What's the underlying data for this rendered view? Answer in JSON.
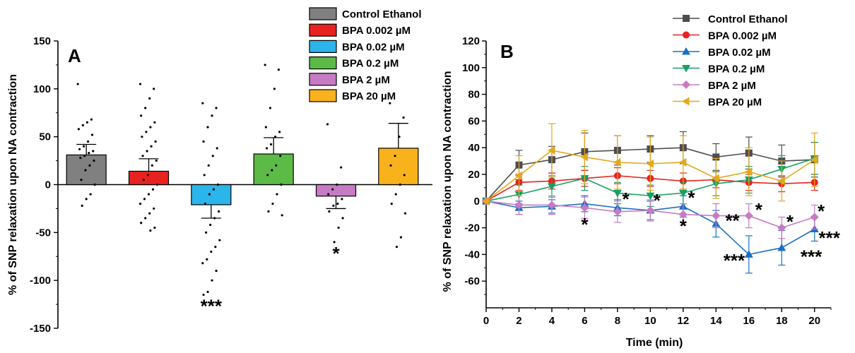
{
  "chart_data": [
    {
      "type": "bar",
      "panel_label": "A",
      "title": "",
      "xlabel": "",
      "ylabel": "% of SNP relaxation upon NA contraction",
      "ylim": [
        -150,
        150
      ],
      "yticks": [
        -150,
        -100,
        -50,
        0,
        50,
        100,
        150
      ],
      "categories": [
        "Control Ethanol",
        "BPA 0.002 µM",
        "BPA 0.02 µM",
        "BPA 0.2 µM",
        "BPA 2 µM",
        "BPA 20 µM"
      ],
      "values": [
        31,
        14,
        -21,
        32,
        -12,
        38
      ],
      "errors": [
        11,
        13,
        14,
        17,
        13,
        26
      ],
      "colors": [
        "#808080",
        "#e8221f",
        "#2bb5ea",
        "#5cba47",
        "#c77bc4",
        "#f9b21c"
      ],
      "significance": [
        "",
        "",
        "***",
        "",
        "*",
        ""
      ],
      "legend": [
        "Control Ethanol",
        "BPA 0.002 µM",
        "BPA 0.02 µM",
        "BPA 0.2 µM",
        "BPA 2 µM",
        "BPA 20 µM"
      ],
      "points": [
        [
          105,
          68,
          65,
          62,
          58,
          52,
          45,
          40,
          37,
          35,
          33,
          30,
          28,
          25,
          20,
          15,
          5,
          0,
          -10,
          -15,
          -22
        ],
        [
          105,
          100,
          90,
          80,
          72,
          65,
          60,
          55,
          50,
          45,
          40,
          35,
          30,
          25,
          20,
          10,
          5,
          0,
          -5,
          -10,
          -15,
          -20,
          -25,
          -30,
          -35,
          -40,
          -45,
          -48
        ],
        [
          85,
          80,
          72,
          60,
          45,
          38,
          30,
          20,
          10,
          0,
          -5,
          -10,
          -20,
          -28,
          -35,
          -42,
          -50,
          -58,
          -65,
          -70,
          -78,
          -82,
          -90,
          -100,
          -112,
          -115
        ],
        [
          125,
          120,
          100,
          80,
          60,
          55,
          50,
          42,
          38,
          30,
          20,
          15,
          10,
          0,
          -10,
          -20,
          -28,
          -32
        ],
        [
          63,
          18,
          0,
          -5,
          -10,
          -15,
          -20,
          -22,
          -28,
          -35,
          -45,
          -60
        ],
        [
          85,
          70,
          50,
          30,
          20,
          10,
          0,
          -10,
          -20,
          -30,
          -55,
          -65
        ]
      ]
    },
    {
      "type": "line",
      "panel_label": "B",
      "title": "",
      "xlabel": "Time (min)",
      "ylabel": "% of SNP relaxation upon NA contraction",
      "xlim": [
        0,
        21
      ],
      "ylim": [
        -80,
        120
      ],
      "xticks": [
        0,
        2,
        4,
        6,
        8,
        10,
        12,
        14,
        16,
        18,
        20
      ],
      "yticks": [
        -60,
        -40,
        -20,
        0,
        20,
        40,
        60,
        80,
        100,
        120
      ],
      "x": [
        0,
        2,
        4,
        6,
        8,
        10,
        12,
        14,
        16,
        18,
        20
      ],
      "series": [
        {
          "name": "Control Ethanol",
          "color": "#4d4d4d",
          "marker": "square",
          "values": [
            0,
            27,
            31,
            37,
            38,
            39,
            40,
            33,
            36,
            30,
            31
          ],
          "errors": [
            0,
            11,
            10,
            14,
            11,
            10,
            12,
            10,
            12,
            12,
            13
          ]
        },
        {
          "name": "BPA 0.002 µM",
          "color": "#e8221f",
          "marker": "circle",
          "values": [
            0,
            14,
            15,
            17,
            19,
            17,
            15,
            16,
            14,
            13,
            14
          ],
          "errors": [
            0,
            6,
            6,
            6,
            6,
            6,
            6,
            6,
            6,
            6,
            6
          ]
        },
        {
          "name": "BPA 0.02 µM",
          "color": "#1b6fc4",
          "marker": "triangle-up",
          "values": [
            0,
            -5,
            -4,
            -2,
            -5,
            -7,
            -4,
            -17,
            -40,
            -35,
            -21
          ],
          "errors": [
            0,
            5,
            5,
            6,
            6,
            7,
            8,
            10,
            14,
            13,
            9
          ]
        },
        {
          "name": "BPA 0.2 µM",
          "color": "#17a063",
          "marker": "triangle-down",
          "values": [
            0,
            5,
            11,
            17,
            6,
            4,
            6,
            13,
            16,
            24,
            32
          ],
          "errors": [
            0,
            7,
            8,
            9,
            8,
            8,
            8,
            9,
            10,
            10,
            12
          ]
        },
        {
          "name": "BPA 2 µM",
          "color": "#c77bc4",
          "marker": "diamond",
          "values": [
            0,
            -3,
            -3,
            -5,
            -8,
            -7,
            -10,
            -11,
            -11,
            -20,
            -12
          ],
          "errors": [
            0,
            7,
            7,
            8,
            8,
            8,
            8,
            9,
            9,
            8,
            9
          ]
        },
        {
          "name": "BPA 20 µM",
          "color": "#e3a81c",
          "marker": "triangle-left",
          "values": [
            0,
            19,
            38,
            33,
            29,
            28,
            29,
            17,
            22,
            15,
            31
          ],
          "errors": [
            0,
            15,
            20,
            20,
            20,
            20,
            20,
            15,
            18,
            15,
            20
          ]
        }
      ],
      "annotations": [
        {
          "x": 6,
          "y": -17,
          "text": "*"
        },
        {
          "x": 8.5,
          "y": 2,
          "text": "*"
        },
        {
          "x": 10.4,
          "y": 1,
          "text": "*"
        },
        {
          "x": 12.5,
          "y": 3,
          "text": "*"
        },
        {
          "x": 12,
          "y": -18,
          "text": "*"
        },
        {
          "x": 15,
          "y": -14,
          "text": "**"
        },
        {
          "x": 16.6,
          "y": -6,
          "text": "*"
        },
        {
          "x": 15.1,
          "y": -44,
          "text": "***"
        },
        {
          "x": 18.5,
          "y": -15,
          "text": "*"
        },
        {
          "x": 19.8,
          "y": -41,
          "text": "***"
        },
        {
          "x": 20.4,
          "y": -7,
          "text": "*"
        },
        {
          "x": 20.9,
          "y": -27,
          "text": "***"
        }
      ]
    }
  ]
}
